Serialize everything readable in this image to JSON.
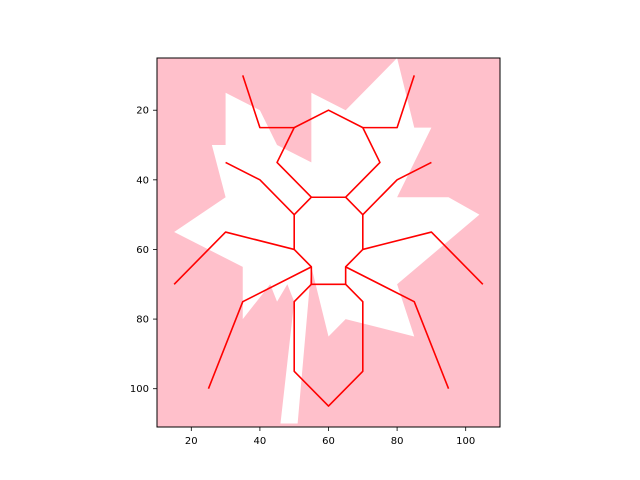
{
  "chart_data": {
    "type": "line",
    "title": "",
    "xlabel": "",
    "ylabel": "",
    "xlim": [
      10,
      110
    ],
    "ylim": [
      111,
      5
    ],
    "y_inverted": true,
    "grid": false,
    "legend": "none",
    "background_color": "#ffc0cb",
    "shape_color": "#ffffff",
    "line_color": "#ff0000",
    "xticks": [
      20,
      40,
      60,
      80,
      100
    ],
    "yticks": [
      20,
      40,
      60,
      80,
      100
    ],
    "background_shape": [
      [
        30,
        15
      ],
      [
        30,
        30
      ],
      [
        26,
        30
      ],
      [
        30,
        45
      ],
      [
        15,
        55
      ],
      [
        35,
        65
      ],
      [
        35,
        80
      ],
      [
        43,
        70
      ],
      [
        45,
        75
      ],
      [
        48,
        70
      ],
      [
        50,
        75
      ],
      [
        46,
        110
      ],
      [
        51,
        110
      ],
      [
        55,
        65
      ],
      [
        60,
        85
      ],
      [
        65,
        80
      ],
      [
        85,
        85
      ],
      [
        80,
        70
      ],
      [
        104,
        50
      ],
      [
        95,
        45
      ],
      [
        80,
        45
      ],
      [
        90,
        25
      ],
      [
        85,
        25
      ],
      [
        80,
        5
      ],
      [
        65,
        20
      ],
      [
        55,
        15
      ],
      [
        55,
        35
      ],
      [
        45,
        30
      ],
      [
        40,
        20
      ]
    ],
    "series": [
      {
        "points": [
          [
            50,
            50
          ],
          [
            50,
            60
          ],
          [
            55,
            65
          ],
          [
            55,
            70
          ],
          [
            65,
            70
          ],
          [
            65,
            65
          ],
          [
            70,
            60
          ],
          [
            70,
            50
          ],
          [
            65,
            45
          ],
          [
            55,
            45
          ],
          [
            50,
            50
          ]
        ]
      },
      {
        "points": [
          [
            55,
            45
          ],
          [
            45,
            35
          ],
          [
            50,
            25
          ],
          [
            60,
            20
          ],
          [
            70,
            25
          ],
          [
            75,
            35
          ],
          [
            65,
            45
          ]
        ]
      },
      {
        "points": [
          [
            50,
            25
          ],
          [
            40,
            25
          ],
          [
            35,
            10
          ]
        ]
      },
      {
        "points": [
          [
            70,
            25
          ],
          [
            80,
            25
          ],
          [
            85,
            10
          ]
        ]
      },
      {
        "points": [
          [
            50,
            50
          ],
          [
            40,
            40
          ],
          [
            30,
            35
          ]
        ]
      },
      {
        "points": [
          [
            70,
            50
          ],
          [
            80,
            40
          ],
          [
            90,
            35
          ]
        ]
      },
      {
        "points": [
          [
            50,
            60
          ],
          [
            30,
            55
          ],
          [
            15,
            70
          ]
        ]
      },
      {
        "points": [
          [
            70,
            60
          ],
          [
            90,
            55
          ],
          [
            105,
            70
          ]
        ]
      },
      {
        "points": [
          [
            55,
            65
          ],
          [
            35,
            75
          ],
          [
            25,
            100
          ]
        ]
      },
      {
        "points": [
          [
            65,
            65
          ],
          [
            85,
            75
          ],
          [
            95,
            100
          ]
        ]
      },
      {
        "points": [
          [
            55,
            70
          ],
          [
            50,
            75
          ],
          [
            50,
            95
          ],
          [
            60,
            105
          ],
          [
            70,
            95
          ],
          [
            70,
            75
          ],
          [
            65,
            70
          ]
        ]
      }
    ]
  }
}
